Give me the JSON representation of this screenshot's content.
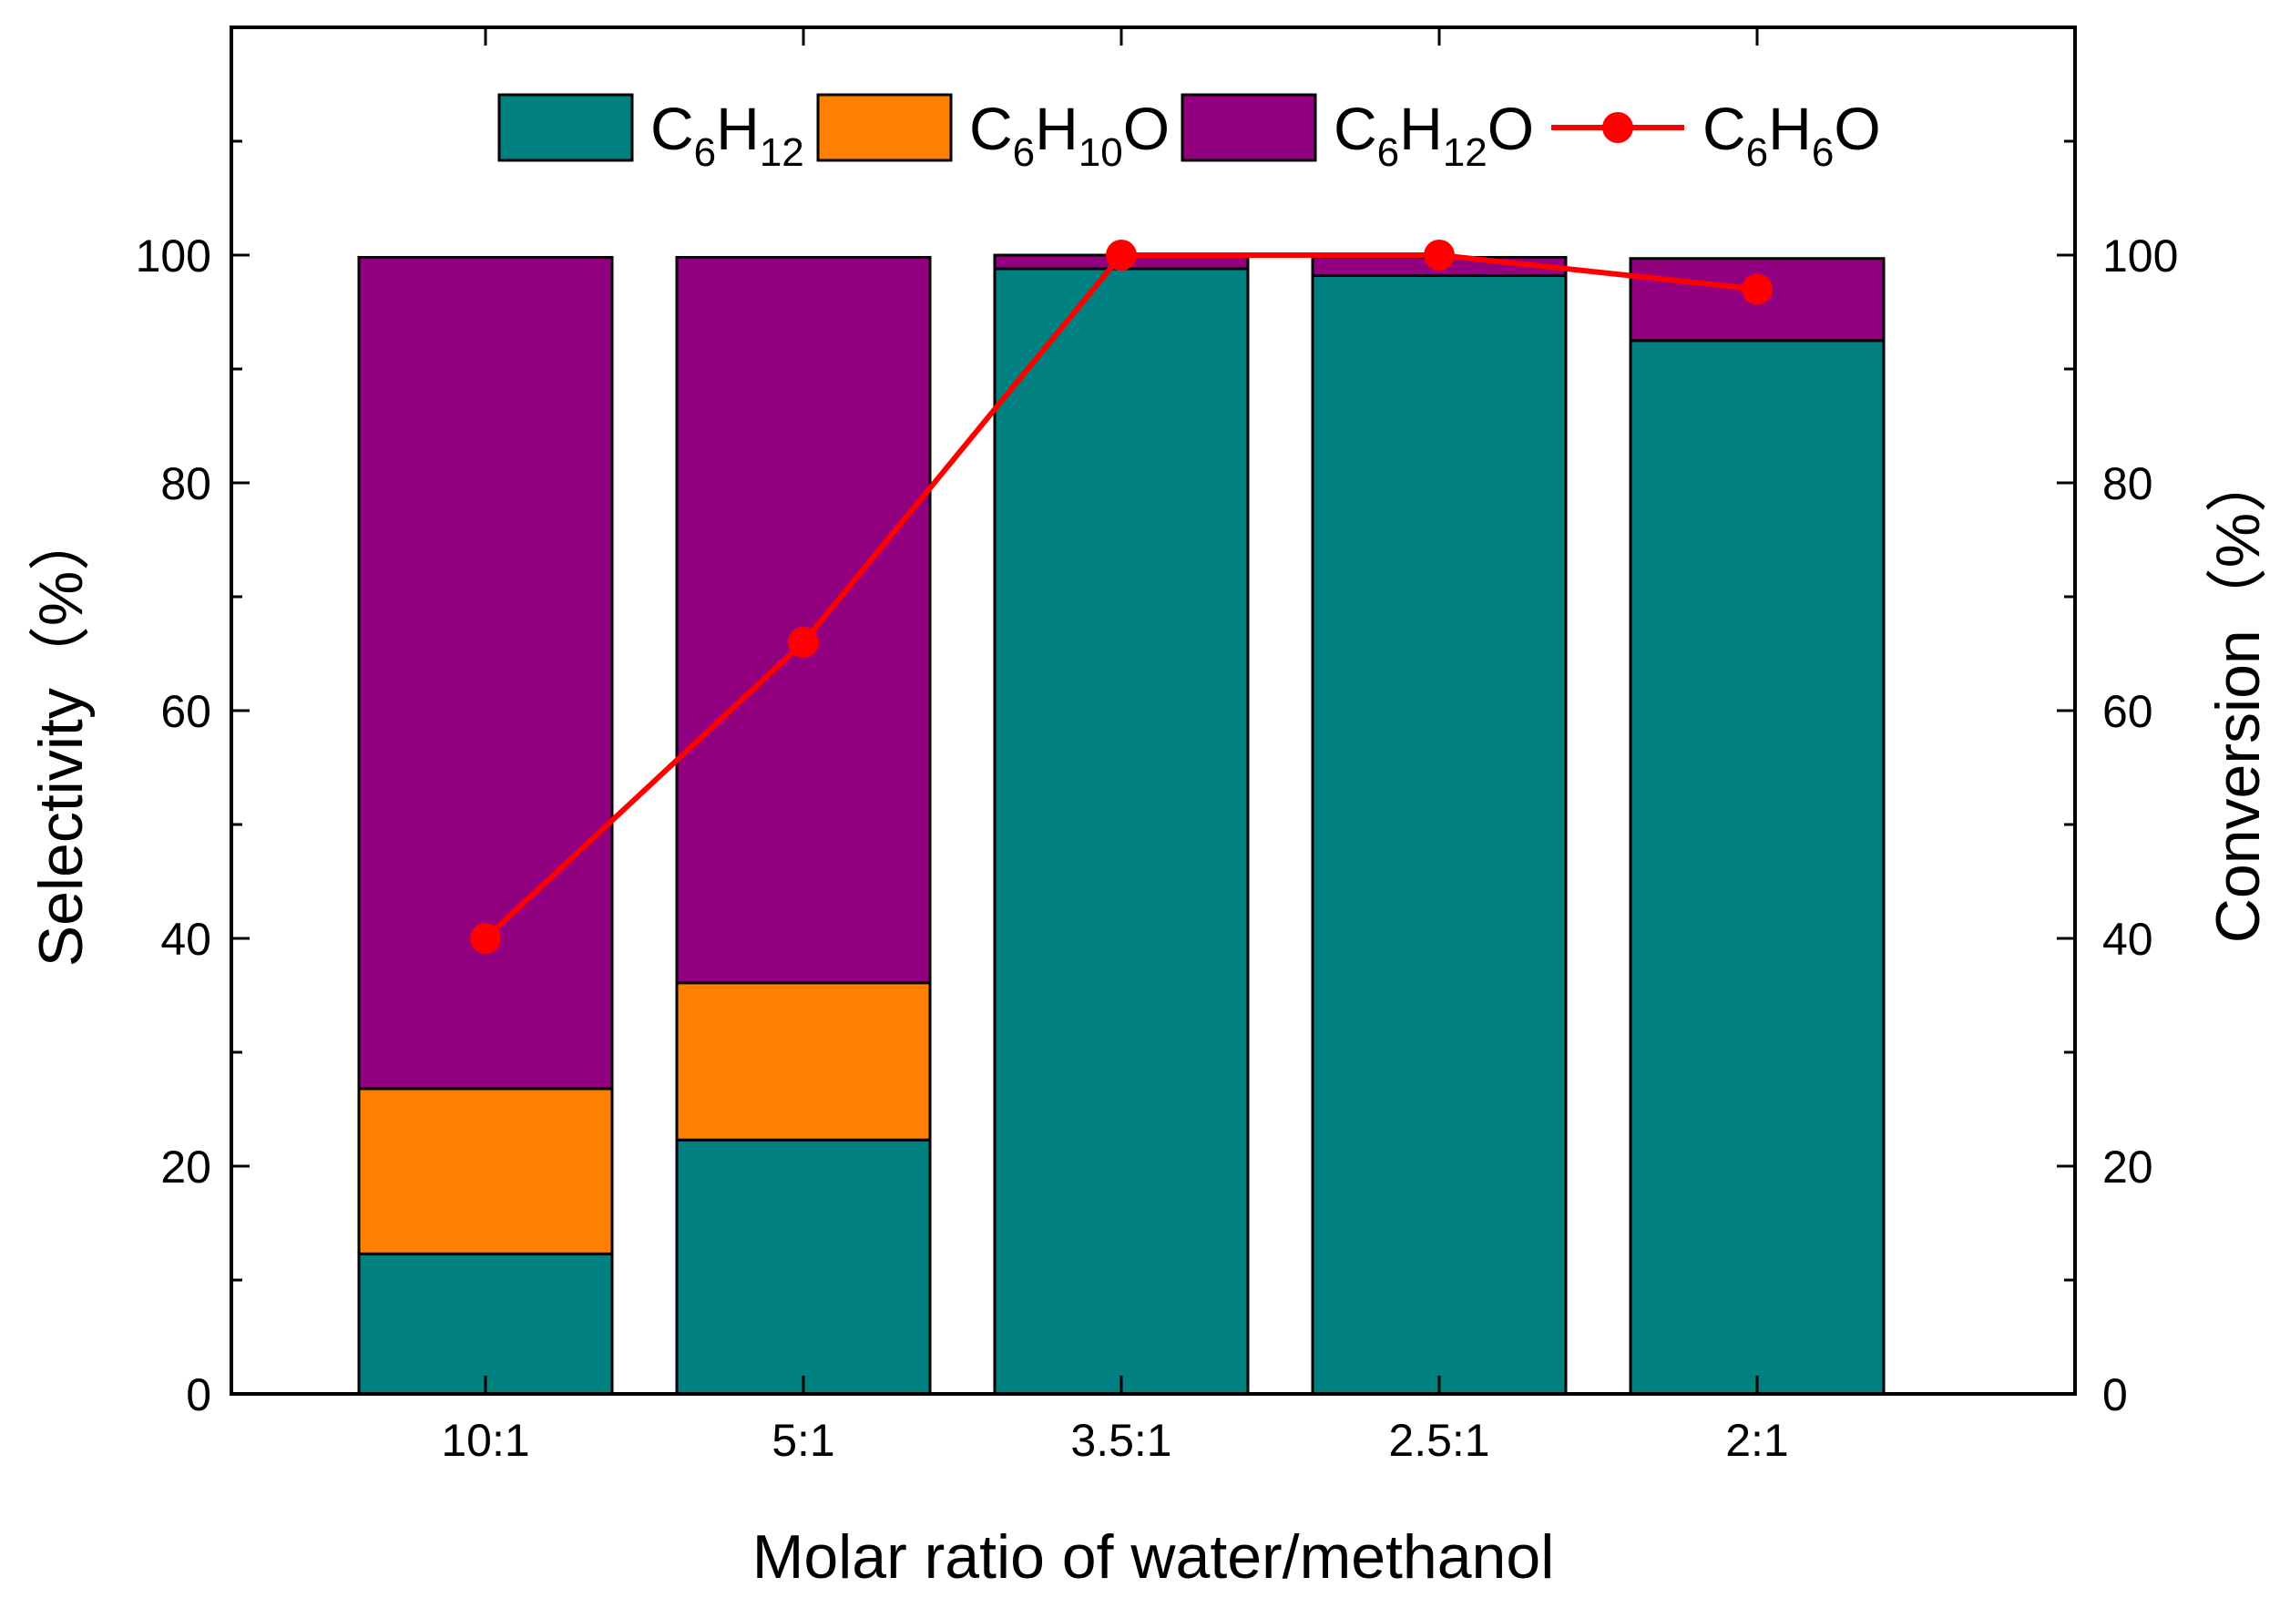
{
  "chart_data": {
    "type": "bar",
    "stacked": true,
    "xlabel": "Molar ratio of water/methanol",
    "ylabel": "Selectivity（%）",
    "y2label": "Conversion（%）",
    "categories": [
      "10:1",
      "5:1",
      "3.5:1",
      "2.5:1",
      "2:1"
    ],
    "ylim": [
      0,
      120
    ],
    "y2lim": [
      0,
      120
    ],
    "yticks": [
      "0",
      "20",
      "40",
      "60",
      "80",
      "100"
    ],
    "y2ticks": [
      "0",
      "20",
      "40",
      "60",
      "80",
      "100"
    ],
    "series": [
      {
        "name": "C6H12",
        "label": {
          "base": "C",
          "sub1": "6",
          "mid": "H",
          "sub2": "12",
          "tail": ""
        },
        "kind": "bar",
        "axis": "left",
        "color": "#008080",
        "values": [
          12.3,
          22.3,
          98.8,
          98.2,
          92.5
        ]
      },
      {
        "name": "C6H10O",
        "label": {
          "base": "C",
          "sub1": "6",
          "mid": "H",
          "sub2": "10",
          "tail": "O"
        },
        "kind": "bar",
        "axis": "left",
        "color": "#FF8000",
        "values": [
          14.5,
          13.8,
          0,
          0,
          0
        ]
      },
      {
        "name": "C6H12O",
        "label": {
          "base": "C",
          "sub1": "6",
          "mid": "H",
          "sub2": "12",
          "tail": "O"
        },
        "kind": "bar",
        "axis": "left",
        "color": "#920080",
        "values": [
          73.0,
          63.7,
          1.2,
          1.6,
          7.2
        ]
      },
      {
        "name": "C6H6O",
        "label": {
          "base": "C",
          "sub1": "6",
          "mid": "H",
          "sub2": "6",
          "tail": "O"
        },
        "kind": "line",
        "axis": "right",
        "color": "#FF0000",
        "values": [
          40,
          66,
          100,
          100,
          97
        ]
      }
    ],
    "legend_position": "top-center"
  }
}
